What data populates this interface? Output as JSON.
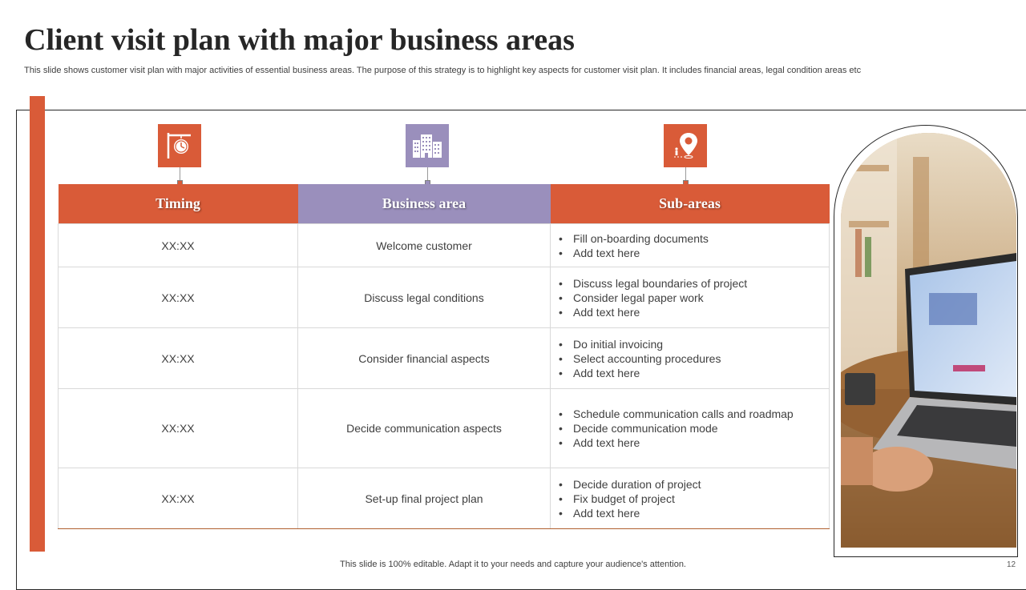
{
  "title": "Client visit plan with major business areas",
  "subtitle": "This slide shows customer visit plan with major activities of essential business areas. The purpose of this strategy is to highlight key aspects for customer visit plan. It includes financial areas, legal condition areas etc",
  "colors": {
    "accent": "#d95b38",
    "purple": "#9a8fbc",
    "text": "#404040"
  },
  "icons": [
    "clock-signboard-icon",
    "office-building-icon",
    "location-pin-icon"
  ],
  "table": {
    "headers": [
      "Timing",
      "Business area",
      "Sub-areas"
    ],
    "rows": [
      {
        "timing": "XX:XX",
        "area": "Welcome customer",
        "subs": [
          "Fill on-boarding documents",
          "Add text here"
        ]
      },
      {
        "timing": "XX:XX",
        "area": "Discuss legal conditions",
        "subs": [
          "Discuss legal boundaries of project",
          "Consider legal paper work",
          "Add text here"
        ]
      },
      {
        "timing": "XX:XX",
        "area": "Consider financial aspects",
        "subs": [
          "Do initial invoicing",
          "Select accounting procedures",
          "Add text here"
        ]
      },
      {
        "timing": "XX:XX",
        "area": "Decide communication aspects",
        "subs": [
          "Schedule communication calls and roadmap",
          "Decide communication mode",
          "Add text here"
        ]
      },
      {
        "timing": "XX:XX",
        "area": "Set-up final project plan",
        "subs": [
          "Decide duration of project",
          "Fix budget of project",
          "Add text here"
        ]
      }
    ]
  },
  "footer": "This slide is 100% editable. Adapt it to your needs and capture your audience's attention.",
  "page_number": "12"
}
